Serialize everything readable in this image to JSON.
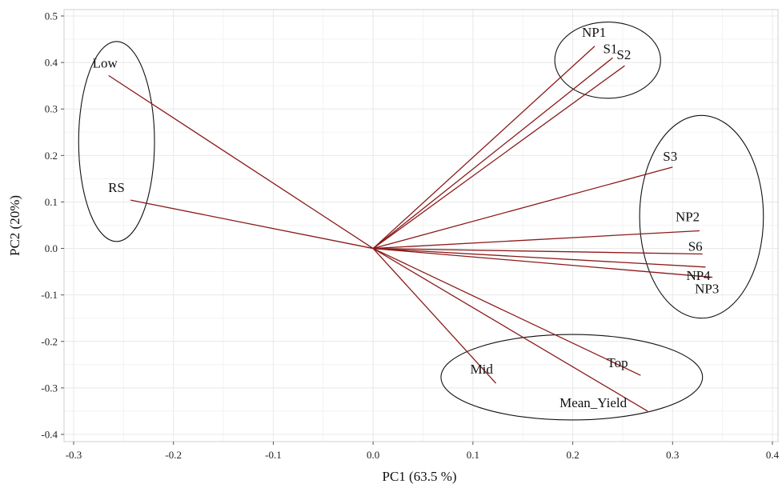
{
  "chart_data": {
    "type": "biplot",
    "xlabel": "PC1 (63.5 %)",
    "ylabel": "PC2 (20%)",
    "xlim": [
      -0.3,
      0.4
    ],
    "ylim": [
      -0.4,
      0.5
    ],
    "xticks": [
      -0.3,
      -0.2,
      -0.1,
      0.0,
      0.1,
      0.2,
      0.3,
      0.4
    ],
    "xtick_labels": [
      "-0.3",
      "-0.2",
      "-0.1",
      "0.0",
      "0.1",
      "0.2",
      "0.3",
      "0.4"
    ],
    "yticks": [
      -0.4,
      -0.3,
      -0.2,
      -0.1,
      0.0,
      0.1,
      0.2,
      0.3,
      0.4,
      0.5
    ],
    "ytick_labels": [
      "-0.4",
      "-0.3",
      "-0.2",
      "-0.1",
      "0.0",
      "0.1",
      "0.2",
      "0.3",
      "0.4",
      "0.5"
    ],
    "grid": true,
    "vector_color": "#8b1a1a",
    "vectors": [
      {
        "name": "NP1",
        "x": 0.222,
        "y": 0.435
      },
      {
        "name": "S1",
        "x": 0.24,
        "y": 0.41
      },
      {
        "name": "S2",
        "x": 0.252,
        "y": 0.393
      },
      {
        "name": "S3",
        "x": 0.3,
        "y": 0.175
      },
      {
        "name": "NP2",
        "x": 0.327,
        "y": 0.038
      },
      {
        "name": "S6",
        "x": 0.33,
        "y": -0.012
      },
      {
        "name": "NP4",
        "x": 0.333,
        "y": -0.04
      },
      {
        "name": "NP3",
        "x": 0.34,
        "y": -0.062
      },
      {
        "name": "Low",
        "x": -0.265,
        "y": 0.372
      },
      {
        "name": "RS",
        "x": -0.243,
        "y": 0.104
      },
      {
        "name": "Mid",
        "x": 0.123,
        "y": -0.29
      },
      {
        "name": "Top",
        "x": 0.268,
        "y": -0.273
      },
      {
        "name": "Mean_Yield",
        "x": 0.275,
        "y": -0.35
      }
    ],
    "groups": [
      {
        "name": "group-1",
        "cx": -0.257,
        "cy": 0.23,
        "rx": 0.038,
        "ry": 0.215
      },
      {
        "name": "group-2",
        "cx": 0.235,
        "cy": 0.405,
        "rx": 0.053,
        "ry": 0.082
      },
      {
        "name": "group-3",
        "cx": 0.329,
        "cy": 0.068,
        "rx": 0.062,
        "ry": 0.218
      },
      {
        "name": "group-4",
        "cx": 0.199,
        "cy": -0.277,
        "rx": 0.131,
        "ry": 0.092
      }
    ]
  }
}
